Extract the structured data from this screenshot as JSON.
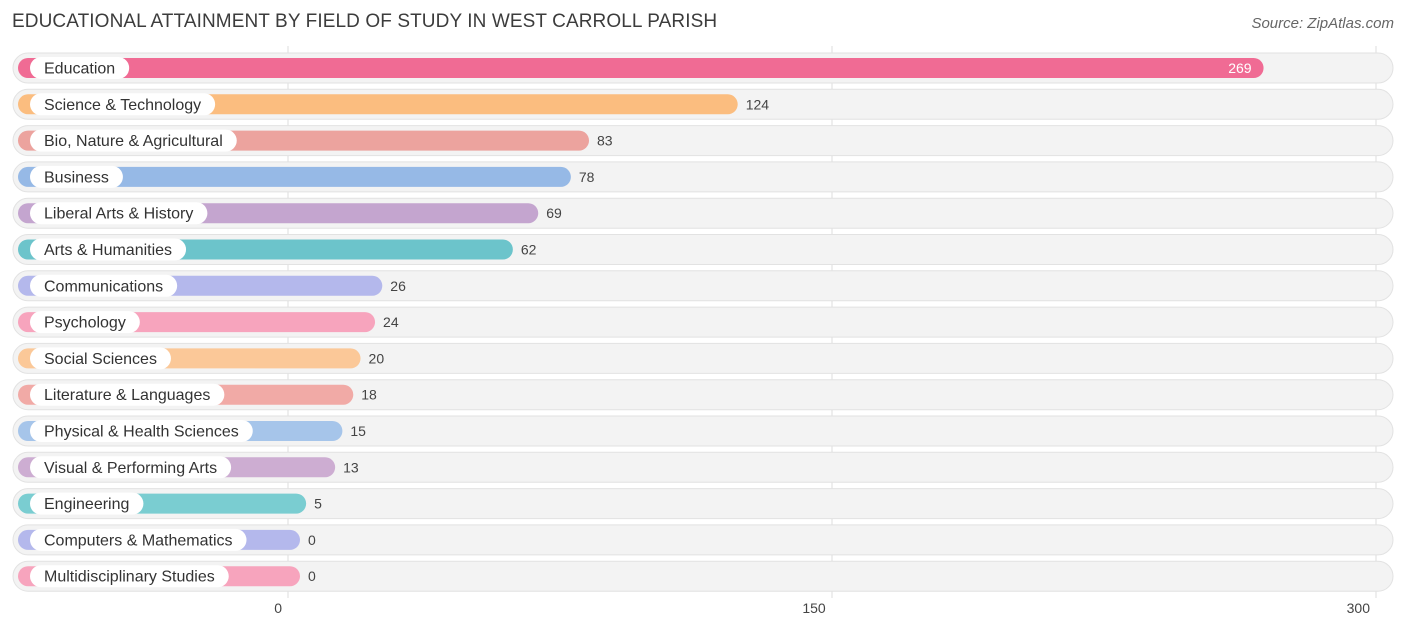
{
  "header": {
    "title": "EDUCATIONAL ATTAINMENT BY FIELD OF STUDY IN WEST CARROLL PARISH",
    "source": "Source: ZipAtlas.com"
  },
  "chart_data": {
    "type": "bar",
    "orientation": "horizontal",
    "title": "EDUCATIONAL ATTAINMENT BY FIELD OF STUDY IN WEST CARROLL PARISH",
    "xlabel": "",
    "ylabel": "",
    "xlim": [
      0,
      300
    ],
    "ticks": [
      0,
      150,
      300
    ],
    "tick_labels": [
      "0",
      "150",
      "300"
    ],
    "grid": true,
    "categories": [
      "Education",
      "Science & Technology",
      "Bio, Nature & Agricultural",
      "Business",
      "Liberal Arts & History",
      "Arts & Humanities",
      "Communications",
      "Psychology",
      "Social Sciences",
      "Literature & Languages",
      "Physical & Health Sciences",
      "Visual & Performing Arts",
      "Engineering",
      "Computers & Mathematics",
      "Multidisciplinary Studies"
    ],
    "values": [
      269,
      124,
      83,
      78,
      69,
      62,
      26,
      24,
      20,
      18,
      15,
      13,
      5,
      0,
      0
    ],
    "value_labels": [
      "269",
      "124",
      "83",
      "78",
      "69",
      "62",
      "26",
      "24",
      "20",
      "18",
      "15",
      "13",
      "5",
      "0",
      "0"
    ],
    "colors": [
      "#f06b94",
      "#fbbd7f",
      "#eca39e",
      "#96b9e6",
      "#c4a5cf",
      "#6cc4cb",
      "#b4b8ec",
      "#f7a4bd",
      "#fbc898",
      "#f1aaa6",
      "#a6c5ea",
      "#cdadd2",
      "#7acdd1",
      "#b4b8ec",
      "#f7a4bd"
    ]
  }
}
